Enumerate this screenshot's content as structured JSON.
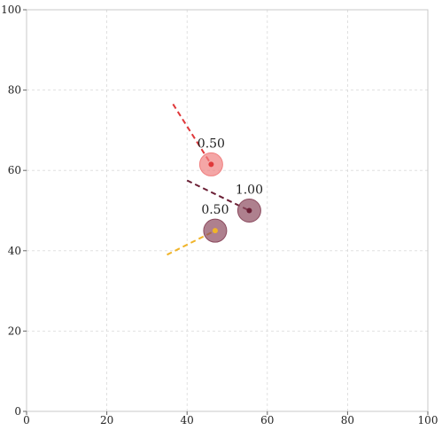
{
  "chart_data": {
    "type": "scatter",
    "title": "",
    "xlabel": "",
    "ylabel": "",
    "xlim": [
      0,
      100
    ],
    "ylim": [
      0,
      100
    ],
    "xticks": [
      0,
      20,
      40,
      60,
      80,
      100
    ],
    "yticks": [
      0,
      20,
      40,
      60,
      80,
      100
    ],
    "grid": true,
    "grid_style": "dashed",
    "points": [
      {
        "x": 46,
        "y": 61.5,
        "label": "0.50",
        "fill_color": "#f08080",
        "center_color": "#e0383a",
        "line_color": "#e0383a",
        "line_from": [
          36.5,
          76.5
        ]
      },
      {
        "x": 55.5,
        "y": 50,
        "label": "1.00",
        "fill_color": "#8b4a5e",
        "center_color": "#6b1f35",
        "line_color": "#6b1f35",
        "line_from": [
          40,
          57.5
        ]
      },
      {
        "x": 47,
        "y": 45,
        "label": "0.50",
        "fill_color": "#8b4a5e",
        "center_color": "#f0b429",
        "line_color": "#f0b429",
        "line_from": [
          35,
          39
        ]
      }
    ]
  }
}
